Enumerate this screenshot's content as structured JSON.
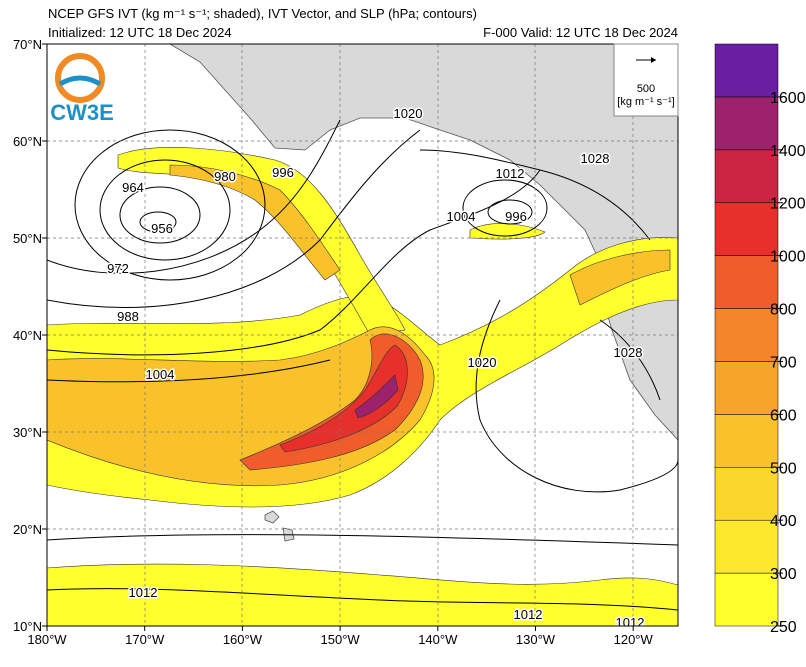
{
  "title": "NCEP GFS IVT (kg m⁻¹ s⁻¹; shaded), IVT Vector, and SLP (hPa; contours)",
  "initialized": "Initialized: 12 UTC 18 Dec 2024",
  "valid": "F-000  Valid: 12 UTC 18 Dec 2024",
  "logo": "CW3E",
  "reference_vector": {
    "value": "500",
    "units": "[kg m⁻¹ s⁻¹]"
  },
  "lon_labels": [
    "180°W",
    "170°W",
    "160°W",
    "150°W",
    "140°W",
    "130°W",
    "120°W"
  ],
  "lat_labels": [
    "70°N",
    "60°N",
    "50°N",
    "40°N",
    "30°N",
    "20°N",
    "10°N"
  ],
  "contour_labels": [
    "964",
    "980",
    "996",
    "956",
    "972",
    "988",
    "1004",
    "1020",
    "1012",
    "996",
    "1004",
    "1028",
    "1020",
    "1028",
    "1012",
    "1012",
    "1012"
  ],
  "colorbar": {
    "ticks": [
      250,
      300,
      400,
      500,
      600,
      700,
      800,
      1000,
      1200,
      1400,
      1600
    ],
    "colors": [
      "#ffff2e",
      "#fde82c",
      "#fbd62b",
      "#f9c12a",
      "#f6a42a",
      "#f4852a",
      "#f15d2a",
      "#e7302b",
      "#cc2443",
      "#9e216b",
      "#6a1fa3"
    ]
  }
}
